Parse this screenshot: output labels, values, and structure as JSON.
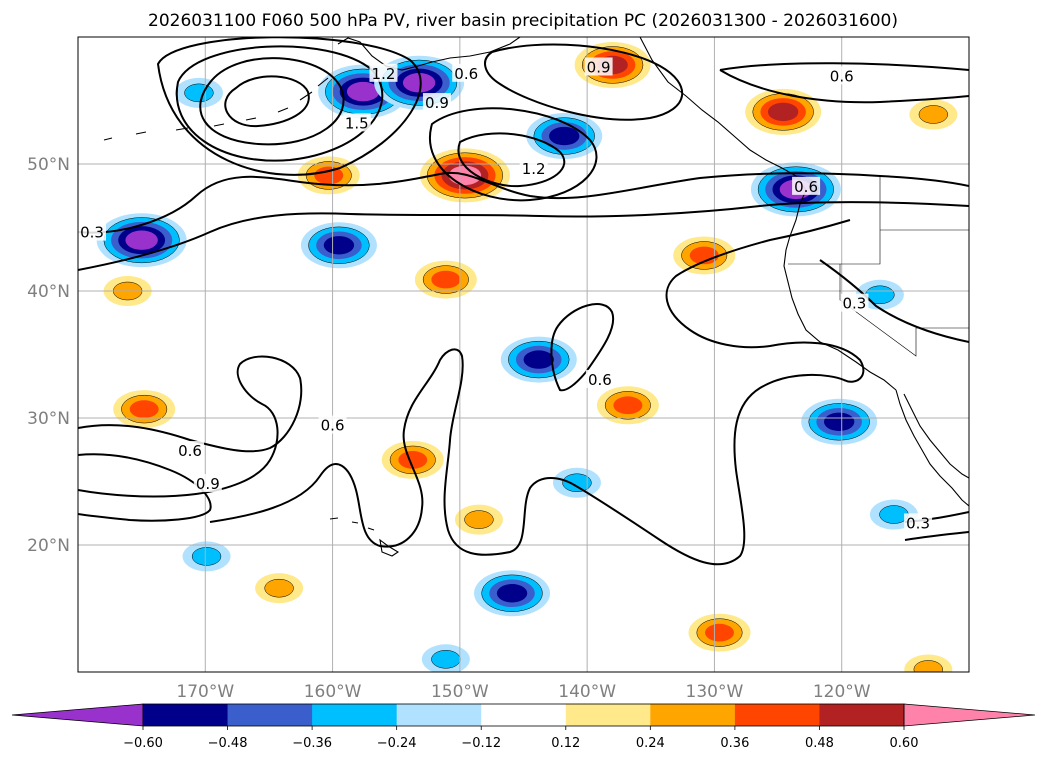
{
  "chart_data": {
    "type": "map-contour",
    "title": "2026031100 F060 500 hPa PV, river basin precipitation PC (2026031300 - 2026031600)",
    "lon_range": [
      -180,
      -110
    ],
    "lat_range": [
      10,
      60
    ],
    "lon_ticks": [
      {
        "value": -170,
        "label": "170°W"
      },
      {
        "value": -160,
        "label": "160°W"
      },
      {
        "value": -150,
        "label": "150°W"
      },
      {
        "value": -140,
        "label": "140°W"
      },
      {
        "value": -130,
        "label": "130°W"
      },
      {
        "value": -120,
        "label": "120°W"
      }
    ],
    "lat_ticks": [
      {
        "value": 20,
        "label": "20°N"
      },
      {
        "value": 30,
        "label": "30°N"
      },
      {
        "value": 40,
        "label": "40°N"
      },
      {
        "value": 50,
        "label": "50°N"
      }
    ],
    "grid": true,
    "colorbar": {
      "orientation": "horizontal",
      "extend": "both",
      "levels": [
        -0.72,
        -0.6,
        -0.48,
        -0.36,
        -0.24,
        -0.12,
        0.12,
        0.24,
        0.36,
        0.48,
        0.6,
        0.72
      ],
      "colors": [
        "#9932cc",
        "#00008b",
        "#3a5fcd",
        "#00bfff",
        "#b0e2ff",
        "#ffffff",
        "#ffe98a",
        "#ffa500",
        "#ff4500",
        "#b22222",
        "#ff82ab"
      ],
      "under_color": "#9932cc",
      "over_color": "#ff82ab",
      "tick_values": [
        -0.6,
        -0.48,
        -0.36,
        -0.24,
        -0.12,
        0.12,
        0.24,
        0.36,
        0.48,
        0.6
      ],
      "tick_labels": [
        "−0.60",
        "−0.48",
        "−0.36",
        "−0.24",
        "−0.12",
        "0.12",
        "0.24",
        "0.36",
        "0.48",
        "0.60"
      ]
    },
    "pv_contour_labels": [
      {
        "text": "1.2",
        "lon": -156,
        "lat": 57.1
      },
      {
        "text": "1.5",
        "lon": -158.1,
        "lat": 53.2
      },
      {
        "text": "0.9",
        "lon": -151.8,
        "lat": 54.8
      },
      {
        "text": "0.6",
        "lon": -149.5,
        "lat": 57.1
      },
      {
        "text": "0.9",
        "lon": -139.1,
        "lat": 57.6
      },
      {
        "text": "0.6",
        "lon": -120.0,
        "lat": 56.9
      },
      {
        "text": "1.2",
        "lon": -144.2,
        "lat": 49.6
      },
      {
        "text": "0.6",
        "lon": -122.8,
        "lat": 48.2
      },
      {
        "text": "0.3",
        "lon": -178.9,
        "lat": 44.6
      },
      {
        "text": "0.3",
        "lon": -119.0,
        "lat": 39.0
      },
      {
        "text": "0.6",
        "lon": -139.0,
        "lat": 33.0
      },
      {
        "text": "0.6",
        "lon": -160.0,
        "lat": 29.4
      },
      {
        "text": "0.6",
        "lon": -171.2,
        "lat": 27.4
      },
      {
        "text": "0.9",
        "lon": -169.8,
        "lat": 24.8
      },
      {
        "text": "0.3",
        "lon": -114.0,
        "lat": 21.7
      }
    ],
    "precip_pc_anomalies": [
      {
        "lon": -170.5,
        "lat": 55.6,
        "value": -0.24
      },
      {
        "lon": -157.6,
        "lat": 55.7,
        "value": -0.6
      },
      {
        "lon": -153.2,
        "lat": 56.4,
        "value": -0.6
      },
      {
        "lon": -141.8,
        "lat": 52.2,
        "value": -0.48
      },
      {
        "lon": -138.0,
        "lat": 57.8,
        "value": 0.48
      },
      {
        "lon": -124.6,
        "lat": 54.1,
        "value": 0.48
      },
      {
        "lon": -160.3,
        "lat": 49.1,
        "value": 0.36
      },
      {
        "lon": -149.6,
        "lat": 49.1,
        "value": 0.6
      },
      {
        "lon": -123.6,
        "lat": 48.0,
        "value": -0.6
      },
      {
        "lon": -112.8,
        "lat": 53.9,
        "value": 0.24
      },
      {
        "lon": -175.0,
        "lat": 44.0,
        "value": -0.6
      },
      {
        "lon": -159.5,
        "lat": 43.6,
        "value": -0.48
      },
      {
        "lon": -130.8,
        "lat": 42.8,
        "value": 0.36
      },
      {
        "lon": -151.1,
        "lat": 40.9,
        "value": 0.36
      },
      {
        "lon": -117.0,
        "lat": 39.7,
        "value": -0.24
      },
      {
        "lon": -176.1,
        "lat": 40.0,
        "value": 0.24
      },
      {
        "lon": -143.8,
        "lat": 34.6,
        "value": -0.48
      },
      {
        "lon": -136.8,
        "lat": 31.0,
        "value": 0.36
      },
      {
        "lon": -174.8,
        "lat": 30.7,
        "value": 0.36
      },
      {
        "lon": -153.7,
        "lat": 26.7,
        "value": 0.36
      },
      {
        "lon": -120.2,
        "lat": 29.7,
        "value": -0.48
      },
      {
        "lon": -140.8,
        "lat": 24.9,
        "value": -0.24
      },
      {
        "lon": -115.9,
        "lat": 22.4,
        "value": -0.24
      },
      {
        "lon": -148.5,
        "lat": 22.0,
        "value": 0.24
      },
      {
        "lon": -169.9,
        "lat": 19.1,
        "value": -0.24
      },
      {
        "lon": -164.2,
        "lat": 16.6,
        "value": 0.24
      },
      {
        "lon": -145.9,
        "lat": 16.2,
        "value": -0.48
      },
      {
        "lon": -129.6,
        "lat": 13.1,
        "value": 0.36
      },
      {
        "lon": -151.1,
        "lat": 11.0,
        "value": -0.24
      },
      {
        "lon": -113.2,
        "lat": 10.2,
        "value": 0.24
      }
    ]
  }
}
